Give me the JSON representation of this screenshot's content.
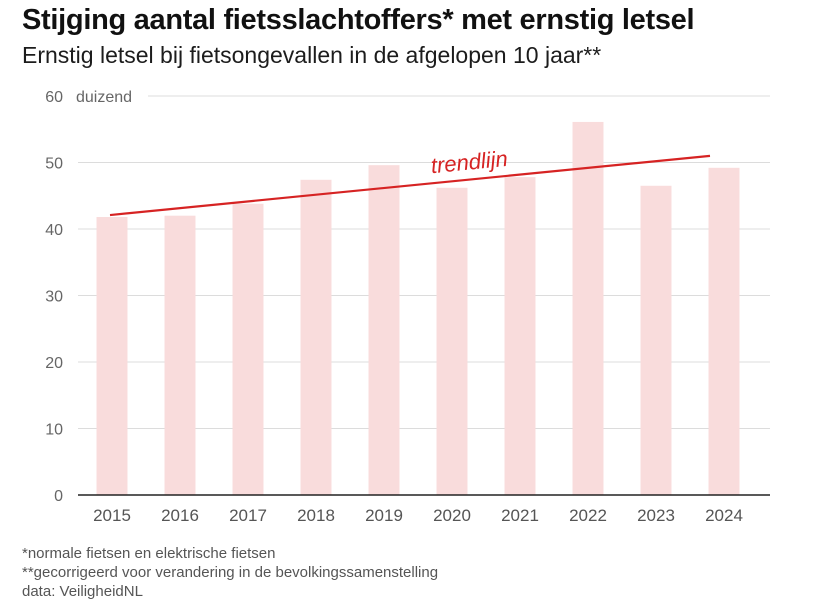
{
  "title": "Stijging aantal fietsslachtoffers* met ernstig letsel",
  "subtitle": "Ernstig letsel bij fietsongevallen in de afgelopen 10 jaar**",
  "notes": {
    "footnote_1": "*normale fietsen en elektrische fietsen",
    "footnote_2": "**gecorrigeerd voor verandering in de bevolkingssamenstelling",
    "source": "data: VeiligheidNL"
  },
  "chart_data": {
    "type": "bar",
    "categories": [
      "2015",
      "2016",
      "2017",
      "2018",
      "2019",
      "2020",
      "2021",
      "2022",
      "2023",
      "2024"
    ],
    "values": [
      41.8,
      42.0,
      43.8,
      47.4,
      49.6,
      46.2,
      47.8,
      56.1,
      46.5,
      49.2
    ],
    "ylim": [
      0,
      60
    ],
    "yticks": [
      0,
      10,
      20,
      30,
      40,
      50,
      60
    ],
    "ytick_labels": [
      "0",
      "10",
      "20",
      "30",
      "40",
      "50",
      "60"
    ],
    "yunit_label": "duizend",
    "grid": true,
    "bar_color": "#f9dcdc",
    "trendline": {
      "label": "trendlijn",
      "color": "#d62323",
      "start": {
        "x": "2015",
        "y": 42.1
      },
      "end": {
        "x": "2024",
        "y": 51.0
      }
    }
  }
}
